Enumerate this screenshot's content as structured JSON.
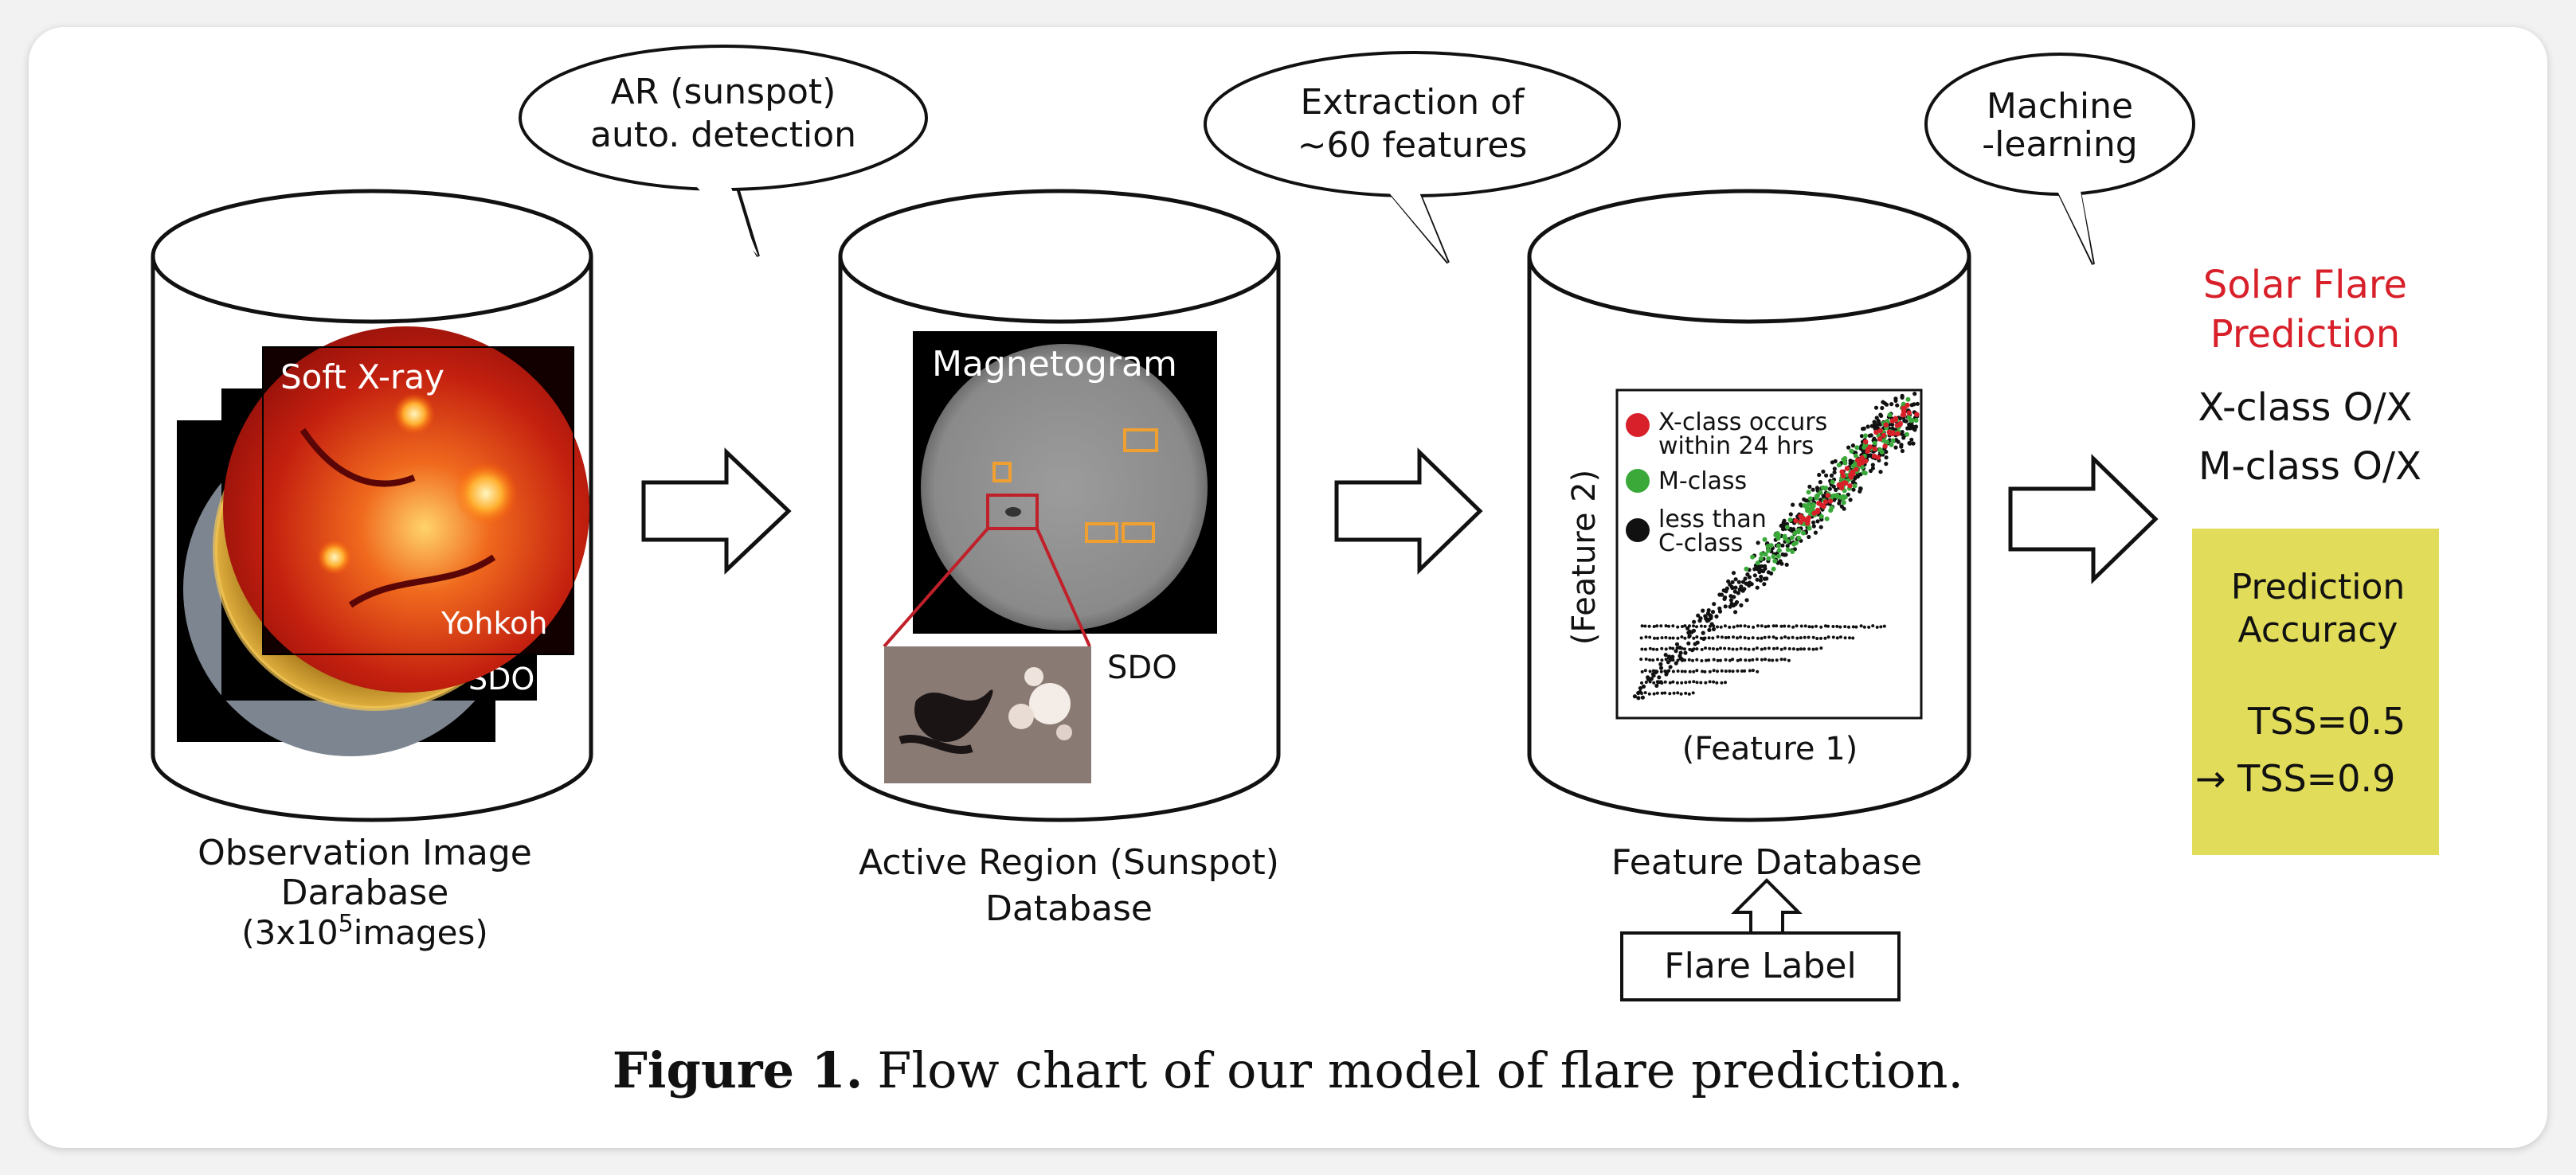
{
  "bubbles": {
    "detect": [
      "AR (sunspot)",
      "auto. detection"
    ],
    "extract": [
      "Extraction of",
      "~60 features"
    ],
    "ml": [
      "Machine",
      "-learning"
    ]
  },
  "obs": {
    "panel_title": "Soft X-ray",
    "yohkoh": "Yohkoh",
    "sdo": "SDO",
    "label_line1": "Observation Image",
    "label_line2": "Darabase",
    "label_line3_pre": "(3x10",
    "label_line3_sup": "5",
    "label_line3_post": "images)"
  },
  "ar": {
    "panel_title": "Magnetogram",
    "sdo": "SDO",
    "label_line1": "Active Region (Sunspot)",
    "label_line2": "Database"
  },
  "feature": {
    "label": "Feature Database",
    "flare_label": "Flare Label"
  },
  "result": {
    "title_line1": "Solar Flare",
    "title_line2": "Prediction",
    "xclass": "X-class O/X",
    "mclass": "M-class O/X",
    "accuracy_line1": "Prediction",
    "accuracy_line2": "Accuracy",
    "tss1": "TSS=0.5",
    "tss2": "→ TSS=0.9",
    "title_color": "#d8202a",
    "box_color": "#e1dc5a"
  },
  "chart_data": {
    "type": "scatter",
    "xlabel": "(Feature 1)",
    "ylabel": "(Feature 2)",
    "legend_position": "top-left",
    "series": [
      {
        "name": "X-class occurs within 24 hrs",
        "color": "#d8202a"
      },
      {
        "name": "M-class",
        "color": "#3aa93a"
      },
      {
        "name": "less than C-class",
        "color": "#111111"
      }
    ]
  },
  "caption": {
    "label": "Figure 1.",
    "text": "Flow chart of our model of flare prediction."
  }
}
